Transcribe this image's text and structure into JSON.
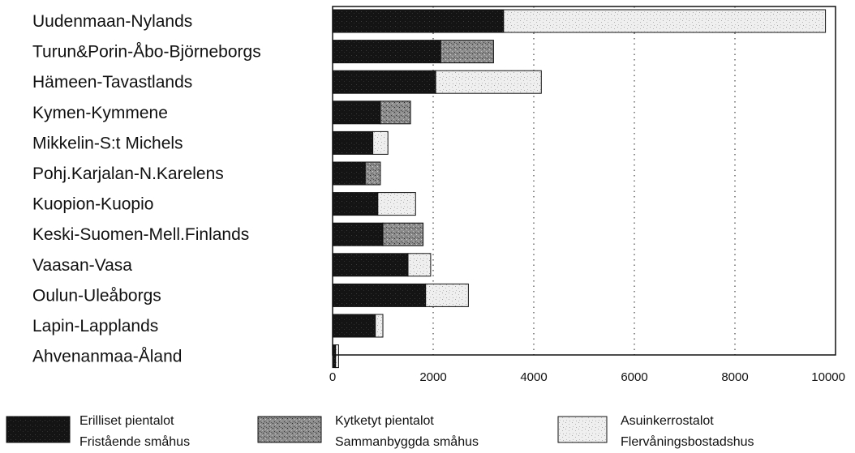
{
  "chart_data": {
    "type": "bar",
    "orientation": "horizontal",
    "stacked": true,
    "categories": [
      "Uudenmaan-Nylands",
      "Turun&Porin-Åbo-Björneborgs",
      "Hämeen-Tavastlands",
      "Kymen-Kymmene",
      "Mikkelin-S:t Michels",
      "Pohj.Karjalan-N.Karelens",
      "Kuopion-Kuopio",
      "Keski-Suomen-Mell.Finlands",
      "Vaasan-Vasa",
      "Oulun-Uleåborgs",
      "Lapin-Lapplands",
      "Ahvenanmaa-Åland"
    ],
    "series": [
      {
        "name": "Erilliset pientalot\nFristående småhus",
        "label_fi": "Erilliset pientalot",
        "label_sv": "Fristående småhus",
        "color": "#111111",
        "values": [
          3400,
          2150,
          2050,
          950,
          800,
          650,
          900,
          1000,
          1500,
          1850,
          850,
          60
        ]
      },
      {
        "name": "Kytketyt pientalot\nSammanbyggda småhus",
        "label_fi": "Kytketyt pientalot",
        "label_sv": "Sammanbyggda småhus",
        "color": "#9a9a9a",
        "values": [
          0,
          1050,
          0,
          600,
          0,
          300,
          0,
          800,
          0,
          0,
          0,
          0
        ]
      },
      {
        "name": "Asuinkerrostalot\nFlervåningsbostadshus",
        "label_fi": "Asuinkerrostalot",
        "label_sv": "Flervåningsbostadshus",
        "color": "#ececec",
        "values": [
          6400,
          0,
          2100,
          0,
          300,
          0,
          750,
          0,
          450,
          850,
          150,
          60
        ]
      }
    ],
    "xlim": [
      0,
      10000
    ],
    "xticks": [
      "0",
      "2000",
      "4000",
      "6000",
      "8000",
      "10000"
    ],
    "xtick_values": [
      0,
      2000,
      4000,
      6000,
      8000,
      10000
    ],
    "grid": "vertical dotted",
    "legend_position": "bottom",
    "title": "",
    "xlabel": "",
    "ylabel": ""
  }
}
